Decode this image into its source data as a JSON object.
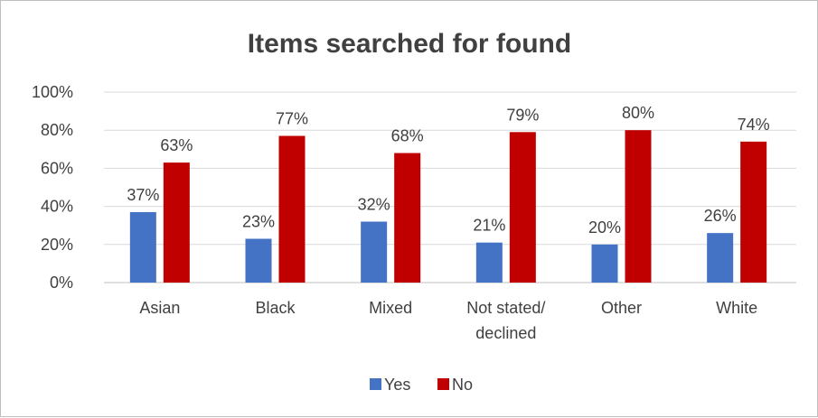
{
  "chart_data": {
    "type": "bar",
    "title": "Items searched for found",
    "categories": [
      [
        "Asian"
      ],
      [
        "Black"
      ],
      [
        "Mixed"
      ],
      [
        "Not stated/",
        "declined"
      ],
      [
        "Other"
      ],
      [
        "White"
      ]
    ],
    "series": [
      {
        "name": "Yes",
        "color": "#4472c4",
        "values": [
          37,
          23,
          32,
          21,
          20,
          26
        ],
        "labels": [
          "37%",
          "23%",
          "32%",
          "21%",
          "20%",
          "26%"
        ]
      },
      {
        "name": "No",
        "color": "#c00000",
        "values": [
          63,
          77,
          68,
          79,
          80,
          74
        ],
        "labels": [
          "63%",
          "77%",
          "68%",
          "79%",
          "80%",
          "74%"
        ]
      }
    ],
    "yticks": [
      "0%",
      "20%",
      "40%",
      "60%",
      "80%",
      "100%"
    ],
    "ylim": [
      0,
      100
    ],
    "grid": true,
    "legend_position": "bottom"
  }
}
